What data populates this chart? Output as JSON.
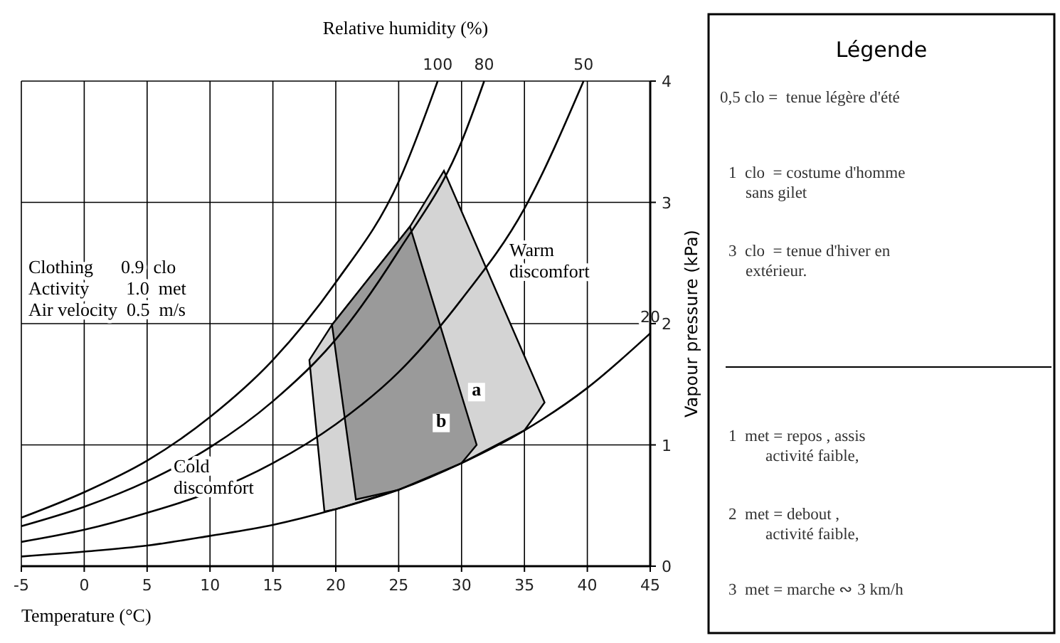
{
  "chart_data": [
    {
      "type": "line",
      "legend_title": "Relative humidity (%)",
      "xlabel": "Temperature (°C)",
      "ylabel": "Vapour pressure (kPa)",
      "xlim": [
        -5,
        45
      ],
      "ylim": [
        0,
        4
      ],
      "xticks": [
        -5,
        0,
        5,
        10,
        15,
        20,
        25,
        30,
        35,
        40,
        45
      ],
      "yticks": [
        0,
        1,
        2,
        3,
        4
      ],
      "grid": true,
      "series": [
        {
          "type": "area",
          "name": "a",
          "color": "#d4d4d4",
          "x": [
            17.9,
            19.7,
            25.9,
            28.6,
            36.6,
            35,
            30,
            25,
            20,
            19.1
          ],
          "values": [
            1.7,
            1.99,
            2.8,
            3.26,
            1.35,
            1.12,
            0.85,
            0.63,
            0.47,
            0.45
          ]
        },
        {
          "type": "area",
          "name": "b",
          "color": "#9a9a9a",
          "x": [
            19.7,
            25.9,
            31.2,
            30,
            25,
            21.6
          ],
          "values": [
            1.99,
            2.8,
            1.0,
            0.85,
            0.63,
            0.55
          ]
        },
        {
          "name": "100",
          "color": "#000000",
          "x": [
            -5,
            0,
            5,
            10,
            15,
            20,
            25,
            28.1
          ],
          "values": [
            0.4,
            0.61,
            0.87,
            1.23,
            1.7,
            2.34,
            3.17,
            4.0
          ]
        },
        {
          "name": "80",
          "color": "#000000",
          "x": [
            -5,
            0,
            5,
            10,
            15,
            20,
            25,
            30,
            31.8
          ],
          "values": [
            0.33,
            0.49,
            0.7,
            0.98,
            1.36,
            1.87,
            2.6,
            3.5,
            4.0
          ]
        },
        {
          "name": "50",
          "color": "#000000",
          "x": [
            -5,
            0,
            5,
            10,
            15,
            20,
            25,
            30,
            35,
            39.7
          ],
          "values": [
            0.2,
            0.3,
            0.44,
            0.61,
            0.85,
            1.17,
            1.6,
            2.2,
            2.95,
            4.0
          ]
        },
        {
          "name": "20",
          "color": "#000000",
          "x": [
            -5,
            0,
            5,
            10,
            15,
            20,
            25,
            30,
            35,
            40,
            45
          ],
          "values": [
            0.08,
            0.12,
            0.17,
            0.25,
            0.34,
            0.47,
            0.63,
            0.85,
            1.12,
            1.47,
            1.92
          ]
        }
      ],
      "annotations": [
        "Clothing      0.9  clo",
        "Activity        1.0  met",
        "Air velocity  0.5  m/s",
        "Warm\ndiscomfort",
        "Cold\ndiscomfort"
      ]
    },
    {
      "type": "other",
      "title": "Légende",
      "annotations": [
        "0,5 clo =  tenue légère d'été",
        "1  clo  = costume d'homme\nsans gilet",
        "3  clo  = tenue d'hiver en\nextérieur.",
        "1  met = repos , assis\nactivité faible,",
        "2  met = debout ,\nactivité faible,",
        "3  met = marche ∾ 3 km/h"
      ]
    }
  ]
}
